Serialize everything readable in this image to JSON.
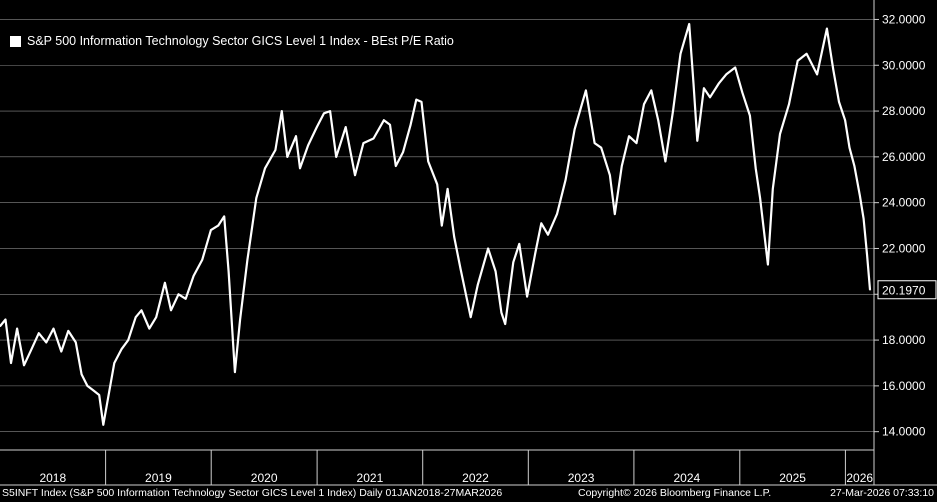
{
  "chart_data": {
    "type": "line",
    "title": "S&P 500 Information Technology Sector GICS Level 1 Index - BEst P/E Ratio",
    "xlabel": "",
    "ylabel": "",
    "x_range": [
      "2018-01-01",
      "2026-03-27"
    ],
    "ylim": [
      13.2,
      32.5
    ],
    "y_ticks": [
      "14.0000",
      "16.0000",
      "18.0000",
      "20.0000",
      "22.0000",
      "24.0000",
      "26.0000",
      "28.0000",
      "30.0000",
      "32.0000"
    ],
    "x_ticks": [
      "2018",
      "2019",
      "2020",
      "2021",
      "2022",
      "2023",
      "2024",
      "2025",
      "2026"
    ],
    "grid": true,
    "legend": "top-left",
    "last_value_label": "20.1970",
    "series": [
      {
        "name": "S&P 500 Information Technology Sector GICS Level 1 Index - BEst P/E Ratio",
        "color": "#ffffff",
        "points": [
          [
            "2018-01-01",
            18.6
          ],
          [
            "2018-01-20",
            18.9
          ],
          [
            "2018-02-08",
            17.0
          ],
          [
            "2018-03-01",
            18.5
          ],
          [
            "2018-03-25",
            16.9
          ],
          [
            "2018-04-20",
            17.6
          ],
          [
            "2018-05-15",
            18.3
          ],
          [
            "2018-06-10",
            17.9
          ],
          [
            "2018-07-05",
            18.5
          ],
          [
            "2018-08-01",
            17.5
          ],
          [
            "2018-08-25",
            18.4
          ],
          [
            "2018-09-20",
            17.9
          ],
          [
            "2018-10-10",
            16.5
          ],
          [
            "2018-10-30",
            16.0
          ],
          [
            "2018-11-20",
            15.8
          ],
          [
            "2018-12-10",
            15.6
          ],
          [
            "2018-12-24",
            14.3
          ],
          [
            "2019-01-10",
            15.5
          ],
          [
            "2019-01-31",
            17.0
          ],
          [
            "2019-02-25",
            17.6
          ],
          [
            "2019-03-20",
            18.0
          ],
          [
            "2019-04-15",
            19.0
          ],
          [
            "2019-05-05",
            19.3
          ],
          [
            "2019-06-01",
            18.5
          ],
          [
            "2019-06-25",
            19.0
          ],
          [
            "2019-07-25",
            20.5
          ],
          [
            "2019-08-15",
            19.3
          ],
          [
            "2019-09-10",
            20.0
          ],
          [
            "2019-10-05",
            19.8
          ],
          [
            "2019-11-01",
            20.8
          ],
          [
            "2019-12-01",
            21.5
          ],
          [
            "2019-12-31",
            22.8
          ],
          [
            "2020-01-25",
            23.0
          ],
          [
            "2020-02-15",
            23.4
          ],
          [
            "2020-03-01",
            21.0
          ],
          [
            "2020-03-23",
            16.6
          ],
          [
            "2020-04-10",
            18.9
          ],
          [
            "2020-05-05",
            21.5
          ],
          [
            "2020-06-05",
            24.2
          ],
          [
            "2020-07-05",
            25.5
          ],
          [
            "2020-08-10",
            26.3
          ],
          [
            "2020-09-01",
            28.0
          ],
          [
            "2020-09-20",
            26.0
          ],
          [
            "2020-10-20",
            26.9
          ],
          [
            "2020-11-03",
            25.5
          ],
          [
            "2020-12-01",
            26.5
          ],
          [
            "2020-12-31",
            27.3
          ],
          [
            "2021-01-25",
            27.9
          ],
          [
            "2021-02-15",
            28.0
          ],
          [
            "2021-03-08",
            26.0
          ],
          [
            "2021-04-10",
            27.3
          ],
          [
            "2021-05-12",
            25.2
          ],
          [
            "2021-06-10",
            26.6
          ],
          [
            "2021-07-15",
            26.8
          ],
          [
            "2021-08-20",
            27.6
          ],
          [
            "2021-09-10",
            27.4
          ],
          [
            "2021-09-30",
            25.6
          ],
          [
            "2021-10-25",
            26.2
          ],
          [
            "2021-11-20",
            27.4
          ],
          [
            "2021-12-10",
            28.5
          ],
          [
            "2021-12-28",
            28.4
          ],
          [
            "2022-01-20",
            25.8
          ],
          [
            "2022-02-20",
            24.8
          ],
          [
            "2022-03-08",
            23.0
          ],
          [
            "2022-03-28",
            24.6
          ],
          [
            "2022-04-20",
            22.5
          ],
          [
            "2022-05-12",
            21.1
          ],
          [
            "2022-06-16",
            19.0
          ],
          [
            "2022-07-10",
            20.4
          ],
          [
            "2022-08-15",
            22.0
          ],
          [
            "2022-09-10",
            21.0
          ],
          [
            "2022-09-30",
            19.2
          ],
          [
            "2022-10-13",
            18.7
          ],
          [
            "2022-11-10",
            21.4
          ],
          [
            "2022-12-01",
            22.2
          ],
          [
            "2022-12-28",
            19.9
          ],
          [
            "2023-01-25",
            21.8
          ],
          [
            "2023-02-15",
            23.1
          ],
          [
            "2023-03-10",
            22.6
          ],
          [
            "2023-04-10",
            23.5
          ],
          [
            "2023-05-10",
            25.0
          ],
          [
            "2023-06-10",
            27.2
          ],
          [
            "2023-07-19",
            28.9
          ],
          [
            "2023-08-18",
            26.6
          ],
          [
            "2023-09-10",
            26.4
          ],
          [
            "2023-10-10",
            25.2
          ],
          [
            "2023-10-27",
            23.5
          ],
          [
            "2023-11-20",
            25.6
          ],
          [
            "2023-12-15",
            26.9
          ],
          [
            "2024-01-10",
            26.6
          ],
          [
            "2024-02-05",
            28.3
          ],
          [
            "2024-03-01",
            28.9
          ],
          [
            "2024-03-25",
            27.6
          ],
          [
            "2024-04-19",
            25.8
          ],
          [
            "2024-05-15",
            28.0
          ],
          [
            "2024-06-10",
            30.5
          ],
          [
            "2024-07-10",
            31.8
          ],
          [
            "2024-07-25",
            29.2
          ],
          [
            "2024-08-07",
            26.7
          ],
          [
            "2024-08-30",
            29.0
          ],
          [
            "2024-09-20",
            28.6
          ],
          [
            "2024-10-20",
            29.2
          ],
          [
            "2024-11-15",
            29.6
          ],
          [
            "2024-12-16",
            29.9
          ],
          [
            "2025-01-10",
            28.8
          ],
          [
            "2025-02-05",
            27.8
          ],
          [
            "2025-02-25",
            25.5
          ],
          [
            "2025-03-12",
            24.2
          ],
          [
            "2025-04-08",
            21.3
          ],
          [
            "2025-04-25",
            24.6
          ],
          [
            "2025-05-20",
            27.0
          ],
          [
            "2025-06-20",
            28.3
          ],
          [
            "2025-07-20",
            30.2
          ],
          [
            "2025-08-20",
            30.5
          ],
          [
            "2025-09-25",
            29.6
          ],
          [
            "2025-10-29",
            31.6
          ],
          [
            "2025-11-20",
            29.8
          ],
          [
            "2025-12-10",
            28.4
          ],
          [
            "2025-12-31",
            27.6
          ],
          [
            "2026-01-15",
            26.4
          ],
          [
            "2026-02-01",
            25.6
          ],
          [
            "2026-02-20",
            24.3
          ],
          [
            "2026-03-05",
            23.3
          ],
          [
            "2026-03-17",
            21.7
          ],
          [
            "2026-03-27",
            20.197
          ]
        ]
      }
    ]
  },
  "footer": {
    "source": "S5INFT Index (S&P 500 Information Technology Sector GICS Level 1 Index) Daily 01JAN2018-27MAR2026",
    "copyright": "Copyright© 2026 Bloomberg Finance L.P.",
    "timestamp": "27-Mar-2026 07:33:10"
  }
}
